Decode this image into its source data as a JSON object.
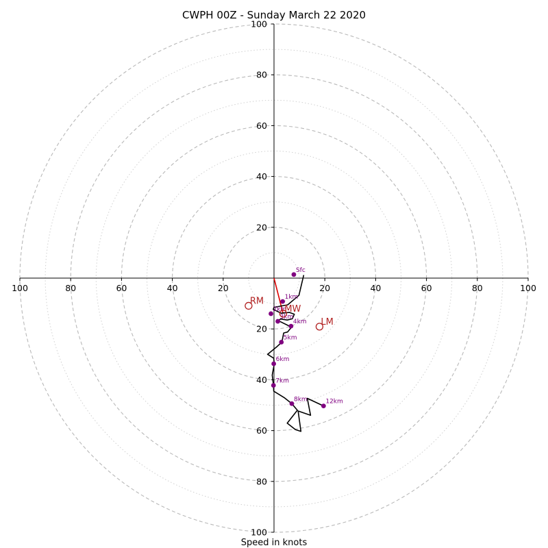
{
  "chart_data": {
    "type": "hodograph",
    "title": "CWPH 00Z - Sunday March 22 2020",
    "xlabel": "Speed in knots",
    "axis_range": [
      -100,
      100
    ],
    "ticks": {
      "x": [
        {
          "v": -100,
          "label": "100"
        },
        {
          "v": -80,
          "label": "80"
        },
        {
          "v": -60,
          "label": "60"
        },
        {
          "v": -40,
          "label": "40"
        },
        {
          "v": -20,
          "label": "20"
        },
        {
          "v": 20,
          "label": "20"
        },
        {
          "v": 40,
          "label": "40"
        },
        {
          "v": 60,
          "label": "60"
        },
        {
          "v": 80,
          "label": "80"
        },
        {
          "v": 100,
          "label": "100"
        }
      ],
      "y": [
        {
          "v": 100,
          "label": "100"
        },
        {
          "v": 80,
          "label": "80"
        },
        {
          "v": 60,
          "label": "60"
        },
        {
          "v": 40,
          "label": "40"
        },
        {
          "v": 20,
          "label": "20"
        },
        {
          "v": -20,
          "label": "20"
        },
        {
          "v": -40,
          "label": "40"
        },
        {
          "v": -60,
          "label": "60"
        },
        {
          "v": -80,
          "label": "80"
        },
        {
          "v": -100,
          "label": "100"
        }
      ]
    },
    "rings_dashed": [
      20,
      40,
      60,
      80,
      100
    ],
    "rings_dotted": [
      10,
      30,
      50,
      70,
      90
    ],
    "grid": true,
    "hodograph_trace": [
      [
        11.7,
        1.2
      ],
      [
        9.8,
        -6.8
      ],
      [
        5.4,
        -10.5
      ],
      [
        1.5,
        -11.2
      ],
      [
        0.0,
        -11.5
      ],
      [
        -0.3,
        -12.3
      ],
      [
        2.8,
        -13.8
      ],
      [
        6.1,
        -13.5
      ],
      [
        8.0,
        -14.2
      ],
      [
        7.2,
        -16.0
      ],
      [
        5.2,
        -16.5
      ],
      [
        2.6,
        -16.1
      ],
      [
        1.0,
        -17.2
      ],
      [
        1.8,
        -16.8
      ],
      [
        6.9,
        -19.3
      ],
      [
        5.3,
        -21.2
      ],
      [
        3.8,
        -21.6
      ],
      [
        3.1,
        -25.2
      ],
      [
        1.1,
        -27.0
      ],
      [
        -2.5,
        -30.0
      ],
      [
        -0.1,
        -31.5
      ],
      [
        0.1,
        -33.8
      ],
      [
        -0.7,
        -38.2
      ],
      [
        -0.2,
        -42.3
      ],
      [
        -0.1,
        -44.5
      ],
      [
        4.0,
        -47.0
      ],
      [
        7.0,
        -49.4
      ],
      [
        9.2,
        -52.0
      ],
      [
        5.2,
        -57.1
      ],
      [
        8.4,
        -59.6
      ],
      [
        10.6,
        -60.3
      ],
      [
        9.5,
        -52.3
      ],
      [
        14.4,
        -54.0
      ],
      [
        13.1,
        -47.3
      ],
      [
        19.5,
        -50.3
      ]
    ],
    "height_markers": [
      {
        "label": "Sfc",
        "u": 7.8,
        "v": 1.4
      },
      {
        "label": "1km",
        "u": 3.4,
        "v": -9.2
      },
      {
        "label": "2km",
        "u": -1.2,
        "v": -14.0
      },
      {
        "label": "3km",
        "u": 1.5,
        "v": -17.0
      },
      {
        "label": "4km",
        "u": 6.7,
        "v": -18.9
      },
      {
        "label": "5km",
        "u": 2.9,
        "v": -25.2
      },
      {
        "label": "6km",
        "u": -0.1,
        "v": -33.7
      },
      {
        "label": "7km",
        "u": -0.2,
        "v": -42.2
      },
      {
        "label": "8km",
        "u": 7.0,
        "v": -49.4
      },
      {
        "label": "12km",
        "u": 19.5,
        "v": -50.3
      }
    ],
    "storm_motion_vectors": [
      {
        "label": "RM",
        "u": -10.0,
        "v": -10.9
      },
      {
        "label": "MW",
        "u": 3.6,
        "v": -14.0
      },
      {
        "label": "LM",
        "u": 17.9,
        "v": -19.1
      }
    ],
    "shear_vector": {
      "from": [
        0,
        0
      ],
      "to": [
        3.6,
        -14.0
      ]
    },
    "colors": {
      "trace": "#000000",
      "markers": "#800080",
      "storm_motion": "#b22222",
      "shear": "#dd0000",
      "grid": "#b8b8b8"
    }
  }
}
